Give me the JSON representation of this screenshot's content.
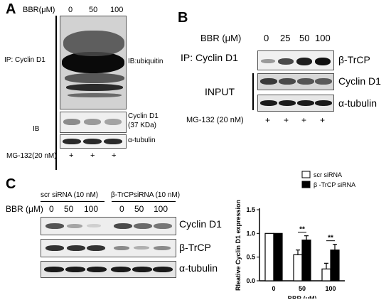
{
  "panelA": {
    "letter": "A",
    "bbr_header": "BBR(μM)",
    "concentrations": [
      "0",
      "50",
      "100"
    ],
    "ip_label": "IP: Cyclin D1",
    "ib_top_label": "IB:ubiquitin",
    "ib_label": "IB",
    "cyclin_label": "Cyclin D1",
    "kda_label": "(37 KDa)",
    "tubulin_label": "α-tubulin",
    "mg132_label": "MG-132(20 nM)",
    "plus_marks": [
      "+",
      "+",
      "+"
    ]
  },
  "panelB": {
    "letter": "B",
    "bbr_header": "BBR (μM)",
    "concentrations": [
      "0",
      "25",
      "50",
      "100"
    ],
    "ip_label": "IP: Cyclin D1",
    "trcp_label": "β-TrCP",
    "input_label": "INPUT",
    "cyclin_label": "Cyclin D1",
    "tubulin_label": "α-tubulin",
    "mg132_label": "MG-132 (20 nM)",
    "plus_marks": [
      "+",
      "+",
      "+",
      "+"
    ]
  },
  "panelC": {
    "letter": "C",
    "group1_label": "scr siRNA (10 nM)",
    "group2_label": "β-TrCPsiRNA (10 nM)",
    "bbr_header": "BBR (μM)",
    "concentrations": [
      "0",
      "50",
      "100",
      "0",
      "50",
      "100"
    ],
    "cyclin_label": "Cyclin D1",
    "trcp_label": "β-TrCP",
    "tubulin_label": "α-tubulin"
  },
  "chart_data": {
    "type": "bar",
    "categories": [
      "0",
      "50",
      "100"
    ],
    "series": [
      {
        "name": "scr siRNA",
        "values": [
          1.0,
          0.55,
          0.25
        ],
        "errors": [
          0.0,
          0.1,
          0.12
        ],
        "color": "#ffffff"
      },
      {
        "name": "β -TrCP siRNA",
        "values": [
          1.0,
          0.86,
          0.65
        ],
        "errors": [
          0.0,
          0.09,
          0.12
        ],
        "color": "#000000"
      }
    ],
    "xlabel": "BBR (μM)",
    "ylabel": "Rleative Cyclin D1 expression",
    "ylim": [
      0,
      1.5
    ],
    "yticks": [
      "0.0",
      "0.5",
      "1.0",
      "1.5"
    ],
    "significance": [
      "",
      "**",
      "**"
    ],
    "legend_position": "top-right"
  }
}
